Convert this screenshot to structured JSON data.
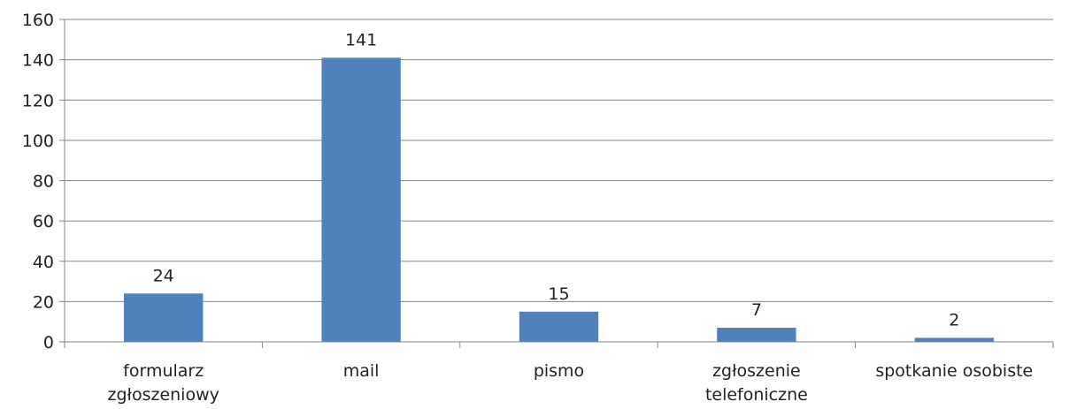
{
  "chart_data": {
    "type": "bar",
    "categories": [
      [
        "formularz",
        "zgłoszeniowy"
      ],
      [
        "mail"
      ],
      [
        "pismo"
      ],
      [
        "zgłoszenie",
        "telefoniczne"
      ],
      [
        "spotkanie osobiste"
      ]
    ],
    "values": [
      24,
      141,
      15,
      7,
      2
    ],
    "data_labels": [
      "24",
      "141",
      "15",
      "7",
      "2"
    ],
    "ylim": [
      0,
      160
    ],
    "yticks": [
      0,
      20,
      40,
      60,
      80,
      100,
      120,
      140,
      160
    ],
    "ytick_labels": [
      "0",
      "20",
      "40",
      "60",
      "80",
      "100",
      "120",
      "140",
      "160"
    ],
    "grid": true,
    "legend": "none",
    "bar_color": "#4F81BD",
    "grid_color": "#868686"
  }
}
